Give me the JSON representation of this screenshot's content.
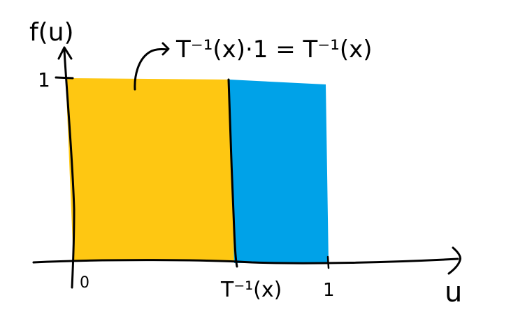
{
  "y_axis_label": "f(u)",
  "x_axis_label": "u",
  "y_tick_one": "1",
  "x_tick_zero": "0",
  "x_tick_inverse": "T⁻¹(x)",
  "x_tick_one": "1",
  "annotation": "T⁻¹(x)·1 = T⁻¹(x)",
  "colors": {
    "left_region": "#fec712",
    "right_region": "#00a2e8",
    "ink": "#000000"
  }
}
